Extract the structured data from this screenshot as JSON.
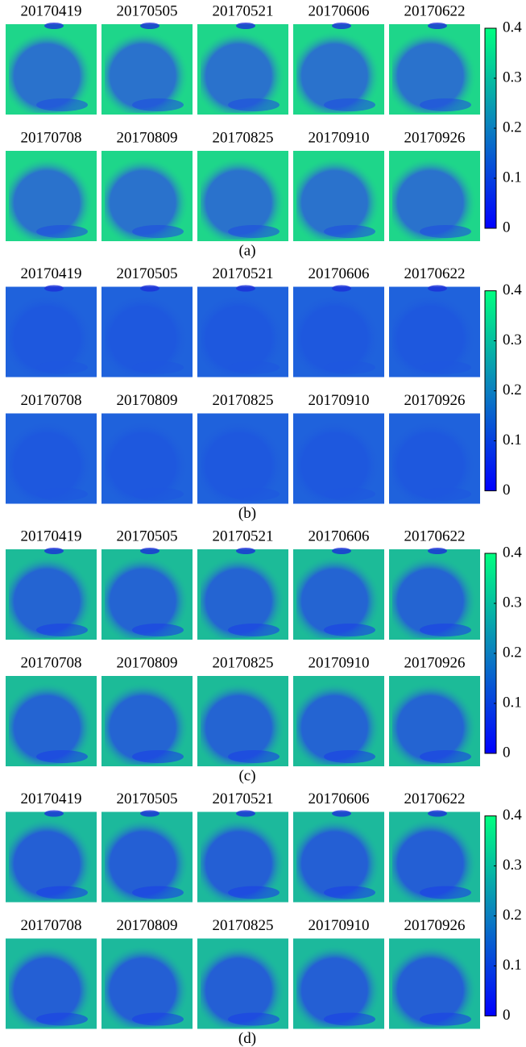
{
  "panels": [
    {
      "rows": [
        [
          "20170419",
          "20170505",
          "20170521",
          "20170606",
          "20170622"
        ],
        [
          "20170708",
          "20170809",
          "20170825",
          "20170910",
          "20170926"
        ]
      ],
      "label": "(a)",
      "colorbar_ticks": [
        0,
        0.1,
        0.2,
        0.3,
        0.4
      ]
    },
    {
      "rows": [
        [
          "20170419",
          "20170505",
          "20170521",
          "20170606",
          "20170622"
        ],
        [
          "20170708",
          "20170809",
          "20170825",
          "20170910",
          "20170926"
        ]
      ],
      "label": "(b)",
      "colorbar_ticks": [
        0,
        0.1,
        0.2,
        0.3,
        0.4
      ]
    },
    {
      "rows": [
        [
          "20170419",
          "20170505",
          "20170521",
          "20170606",
          "20170622"
        ],
        [
          "20170708",
          "20170809",
          "20170825",
          "20170910",
          "20170926"
        ]
      ],
      "label": "(c)",
      "colorbar_ticks": [
        0,
        0.1,
        0.2,
        0.3,
        0.4
      ]
    },
    {
      "rows": [
        [
          "20170419",
          "20170505",
          "20170521",
          "20170606",
          "20170622"
        ],
        [
          "20170708",
          "20170809",
          "20170825",
          "20170910",
          "20170926"
        ]
      ],
      "label": "(d)",
      "colorbar_ticks": [
        0,
        0.1,
        0.2,
        0.3,
        0.4
      ]
    }
  ]
}
